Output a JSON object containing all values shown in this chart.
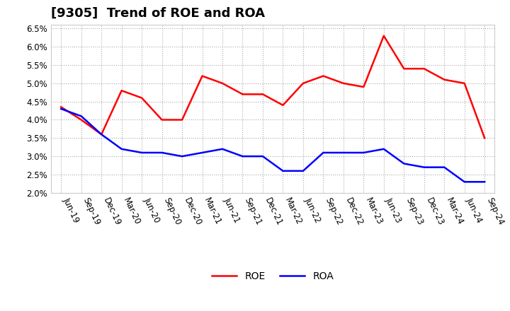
{
  "title": "[9305]  Trend of ROE and ROA",
  "ylim": [
    0.02,
    0.066
  ],
  "yticks": [
    0.02,
    0.025,
    0.03,
    0.035,
    0.04,
    0.045,
    0.05,
    0.055,
    0.06,
    0.065
  ],
  "ytick_labels": [
    "2.0%",
    "2.5%",
    "3.0%",
    "3.5%",
    "4.0%",
    "4.5%",
    "5.0%",
    "5.5%",
    "6.0%",
    "6.5%"
  ],
  "x_labels": [
    "Jun-19",
    "Sep-19",
    "Dec-19",
    "Mar-20",
    "Jun-20",
    "Sep-20",
    "Dec-20",
    "Mar-21",
    "Jun-21",
    "Sep-21",
    "Dec-21",
    "Mar-22",
    "Jun-22",
    "Sep-22",
    "Dec-22",
    "Mar-23",
    "Jun-23",
    "Sep-23",
    "Dec-23",
    "Mar-24",
    "Jun-24",
    "Sep-24"
  ],
  "roe_values": [
    0.0435,
    0.04,
    0.036,
    0.048,
    0.046,
    0.04,
    0.04,
    0.052,
    0.05,
    0.047,
    0.047,
    0.044,
    0.05,
    0.052,
    0.05,
    0.049,
    0.063,
    0.054,
    0.054,
    0.051,
    0.05,
    0.035
  ],
  "roa_values": [
    0.043,
    0.041,
    0.036,
    0.032,
    0.031,
    0.031,
    0.03,
    0.031,
    0.032,
    0.03,
    0.03,
    0.026,
    0.026,
    0.031,
    0.031,
    0.031,
    0.032,
    0.028,
    0.027,
    0.027,
    0.023,
    0.023
  ],
  "roe_color": "#ff0000",
  "roa_color": "#0000ff",
  "background_color": "#ffffff",
  "plot_bg_color": "#ffffff",
  "grid_color": "#aaaaaa",
  "title_fontsize": 13,
  "tick_fontsize": 8.5,
  "legend_fontsize": 10
}
